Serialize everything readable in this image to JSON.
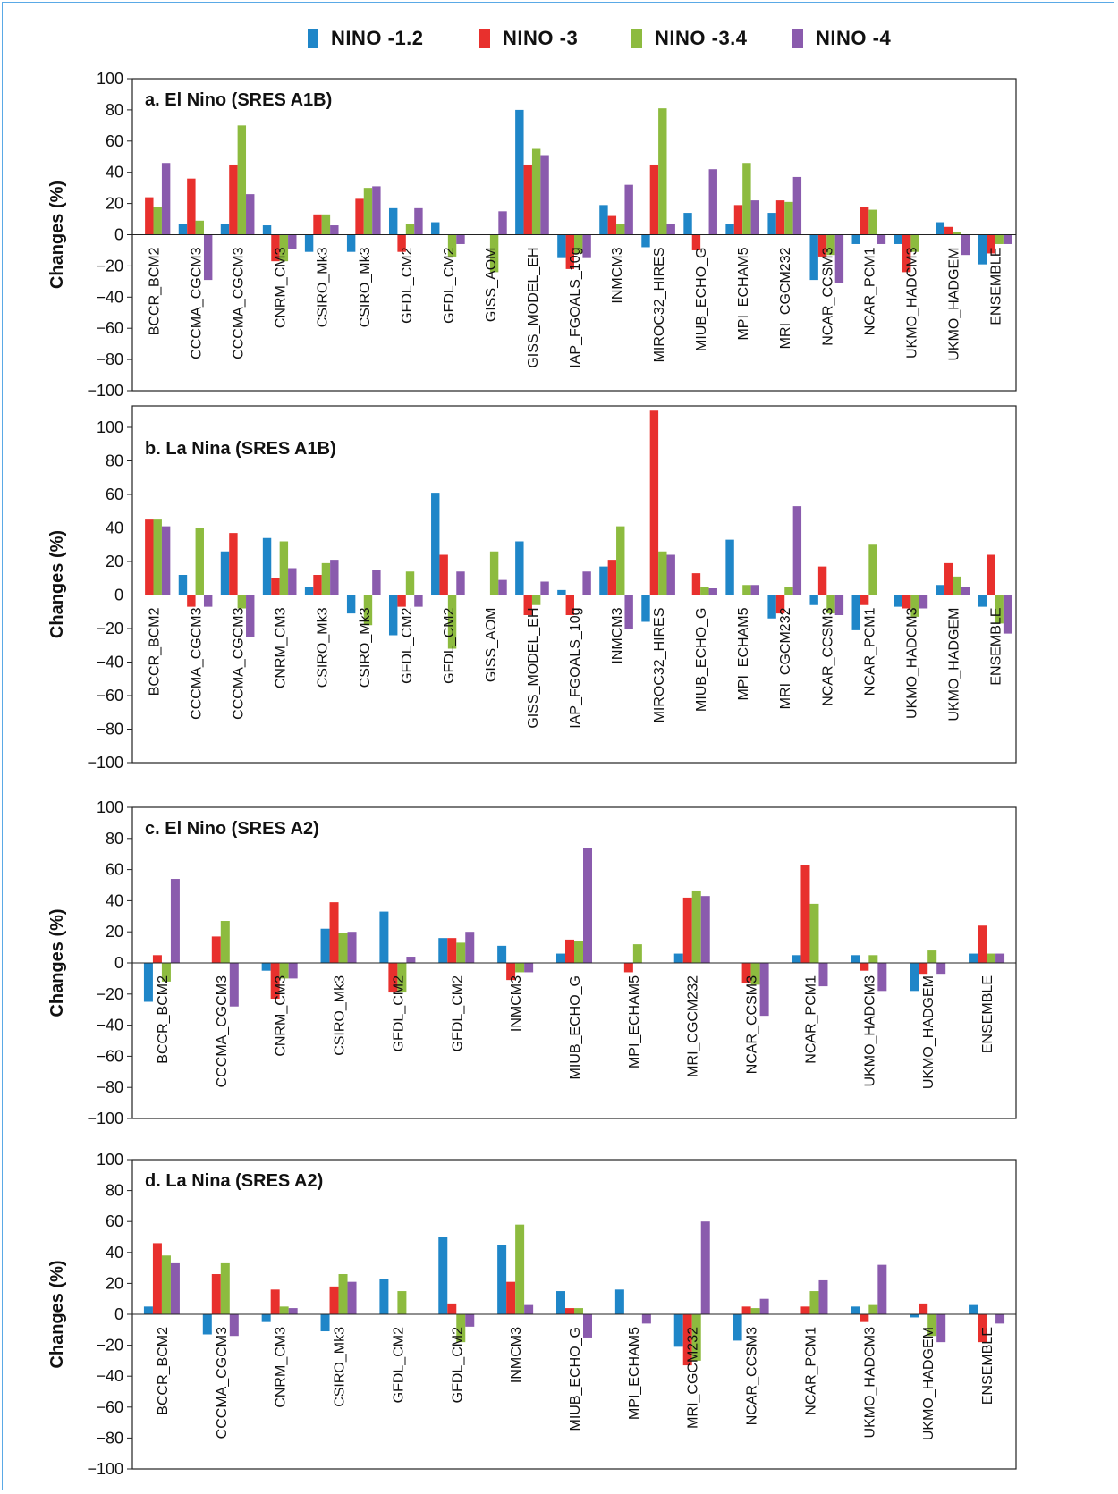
{
  "legend": [
    "NINO -1.2",
    "NINO -3",
    "NINO -3.4",
    "NINO -4"
  ],
  "colors": [
    "#1f86c8",
    "#e8302d",
    "#8dbb3f",
    "#8a5bad"
  ],
  "chart_data": [
    {
      "type": "bar",
      "title": "a. El Nino (SRES A1B)",
      "ylabel": "Changes (%)",
      "ylim": [
        -100,
        100
      ],
      "yticks": [
        100,
        80,
        60,
        40,
        20,
        0,
        -20,
        -40,
        -60,
        -80,
        -100
      ],
      "categories": [
        "BCCR_BCM2",
        "CCCMA_CGCM3",
        "CCCMA_CGCM3",
        "CNRM_CM3",
        "CSIRO_Mk3",
        "CSIRO_Mk3",
        "GFDL_CM2",
        "GFDL_CM2",
        "GISS_AOM",
        "GISS_MODEL_EH",
        "IAP_FGOALS_10g",
        "INMCM3",
        "MIROC32_HIRES",
        "MIUB_ECHO_G",
        "MPI_ECHAM5",
        "MRI_CGCM232",
        "NCAR_CCSM3",
        "NCAR_PCM1",
        "UKMO_HADCM3",
        "UKMO_HADGEM",
        "ENSEMBLE"
      ],
      "series": [
        {
          "name": "NINO -1.2",
          "values": [
            0,
            7,
            7,
            6,
            -11,
            -11,
            17,
            8,
            0,
            80,
            -15,
            19,
            -8,
            14,
            7,
            14,
            -29,
            -6,
            -6,
            8,
            -19
          ]
        },
        {
          "name": "NINO -3",
          "values": [
            24,
            36,
            45,
            -17,
            13,
            23,
            -11,
            0,
            0,
            45,
            -22,
            12,
            45,
            -10,
            19,
            22,
            -14,
            18,
            -24,
            5,
            -12
          ]
        },
        {
          "name": "NINO -3.4",
          "values": [
            18,
            9,
            70,
            -17,
            13,
            30,
            7,
            -14,
            -24,
            55,
            -12,
            7,
            81,
            0,
            46,
            21,
            -13,
            16,
            -11,
            2,
            -6
          ]
        },
        {
          "name": "NINO -4",
          "values": [
            46,
            -29,
            26,
            -9,
            6,
            31,
            17,
            -6,
            15,
            51,
            -15,
            32,
            7,
            42,
            22,
            37,
            -31,
            -6,
            0,
            -13,
            -6
          ]
        }
      ]
    },
    {
      "type": "bar",
      "title": "b. La Nina (SRES A1B)",
      "ylabel": "Changes (%)",
      "ylim": [
        -100,
        110
      ],
      "yticks": [
        100,
        80,
        60,
        40,
        20,
        0,
        -20,
        -40,
        -60,
        -80,
        -100
      ],
      "categories": [
        "BCCR_BCM2",
        "CCCMA_CGCM3",
        "CCCMA_CGCM3",
        "CNRM_CM3",
        "CSIRO_Mk3",
        "CSIRO_Mk3",
        "GFDL_CM2",
        "GFDL_CM2",
        "GISS_AOM",
        "GISS_MODEL_EH",
        "IAP_FGOALS_10g",
        "INMCM3",
        "MIROC32_HIRES",
        "MIUB_ECHO_G",
        "MPI_ECHAM5",
        "MRI_CGCM232",
        "NCAR_CCSM3",
        "NCAR_PCM1",
        "UKMO_HADCM3",
        "UKMO_HADGEM",
        "ENSEMBLE"
      ],
      "series": [
        {
          "name": "NINO -1.2",
          "values": [
            0,
            12,
            26,
            34,
            5,
            -11,
            -24,
            61,
            0,
            32,
            3,
            17,
            -16,
            0,
            33,
            -14,
            -6,
            -21,
            -7,
            6,
            -7
          ]
        },
        {
          "name": "NINO -3",
          "values": [
            45,
            -7,
            37,
            10,
            12,
            0,
            -7,
            24,
            0,
            -12,
            -12,
            21,
            110,
            13,
            0,
            -11,
            17,
            -6,
            -8,
            19,
            24
          ]
        },
        {
          "name": "NINO -3.4",
          "values": [
            45,
            40,
            -8,
            32,
            19,
            -18,
            14,
            -32,
            26,
            -6,
            0,
            41,
            26,
            5,
            6,
            5,
            -11,
            30,
            -13,
            11,
            -17
          ]
        },
        {
          "name": "NINO -4",
          "values": [
            41,
            -7,
            -25,
            16,
            21,
            15,
            -7,
            14,
            9,
            8,
            14,
            -20,
            24,
            4,
            6,
            53,
            -12,
            0,
            -8,
            5,
            -23
          ]
        }
      ]
    },
    {
      "type": "bar",
      "title": "c. El Nino (SRES A2)",
      "ylabel": "Changes (%)",
      "ylim": [
        -100,
        100
      ],
      "yticks": [
        100,
        80,
        60,
        40,
        20,
        0,
        -20,
        -40,
        -60,
        -80,
        -100
      ],
      "categories": [
        "BCCR_BCM2",
        "CCCMA_CGCM3",
        "CNRM_CM3",
        "CSIRO_Mk3",
        "GFDL_CM2",
        "GFDL_CM2",
        "INMCM3",
        "MIUB_ECHO_G",
        "MPI_ECHAM5",
        "MRI_CGCM232",
        "NCAR_CCSM3",
        "NCAR_PCM1",
        "UKMO_HADCM3",
        "UKMO_HADGEM",
        "ENSEMBLE"
      ],
      "series": [
        {
          "name": "NINO -1.2",
          "values": [
            -25,
            0,
            -5,
            22,
            33,
            16,
            11,
            6,
            0,
            6,
            0,
            5,
            5,
            -18,
            6
          ]
        },
        {
          "name": "NINO -3",
          "values": [
            5,
            17,
            -23,
            39,
            -19,
            16,
            -11,
            15,
            -6,
            42,
            -13,
            63,
            -5,
            -7,
            24
          ]
        },
        {
          "name": "NINO -3.4",
          "values": [
            -12,
            27,
            -10,
            19,
            -19,
            13,
            -6,
            14,
            12,
            46,
            -14,
            38,
            5,
            8,
            6
          ]
        },
        {
          "name": "NINO -4",
          "values": [
            54,
            -28,
            -10,
            20,
            4,
            20,
            -6,
            74,
            0,
            43,
            -34,
            -15,
            -18,
            -7,
            6
          ]
        }
      ]
    },
    {
      "type": "bar",
      "title": "d. La Nina (SRES A2)",
      "ylabel": "Changes (%)",
      "ylim": [
        -100,
        100
      ],
      "yticks": [
        100,
        80,
        60,
        40,
        20,
        0,
        -20,
        -40,
        -60,
        -80,
        -100
      ],
      "categories": [
        "BCCR_BCM2",
        "CCCMA_CGCM3",
        "CNRM_CM3",
        "CSIRO_Mk3",
        "GFDL_CM2",
        "GFDL_CM2",
        "INMCM3",
        "MIUB_ECHO_G",
        "MPI_ECHAM5",
        "MRI_CGCM232",
        "NCAR_CCSM3",
        "NCAR_PCM1",
        "UKMO_HADCM3",
        "UKMO_HADGEM",
        "ENSEMBLE"
      ],
      "series": [
        {
          "name": "NINO -1.2",
          "values": [
            5,
            -13,
            -5,
            -11,
            23,
            50,
            45,
            15,
            16,
            -21,
            -17,
            0,
            5,
            -2,
            6
          ]
        },
        {
          "name": "NINO -3",
          "values": [
            46,
            26,
            16,
            18,
            0,
            7,
            21,
            4,
            0,
            -33,
            5,
            5,
            -5,
            7,
            -18
          ]
        },
        {
          "name": "NINO -3.4",
          "values": [
            38,
            33,
            5,
            26,
            15,
            -18,
            58,
            4,
            0,
            -30,
            4,
            15,
            6,
            -14,
            0
          ]
        },
        {
          "name": "NINO -4",
          "values": [
            33,
            -14,
            4,
            21,
            0,
            -8,
            6,
            -15,
            -6,
            60,
            10,
            22,
            32,
            -18,
            -6
          ]
        }
      ]
    }
  ]
}
